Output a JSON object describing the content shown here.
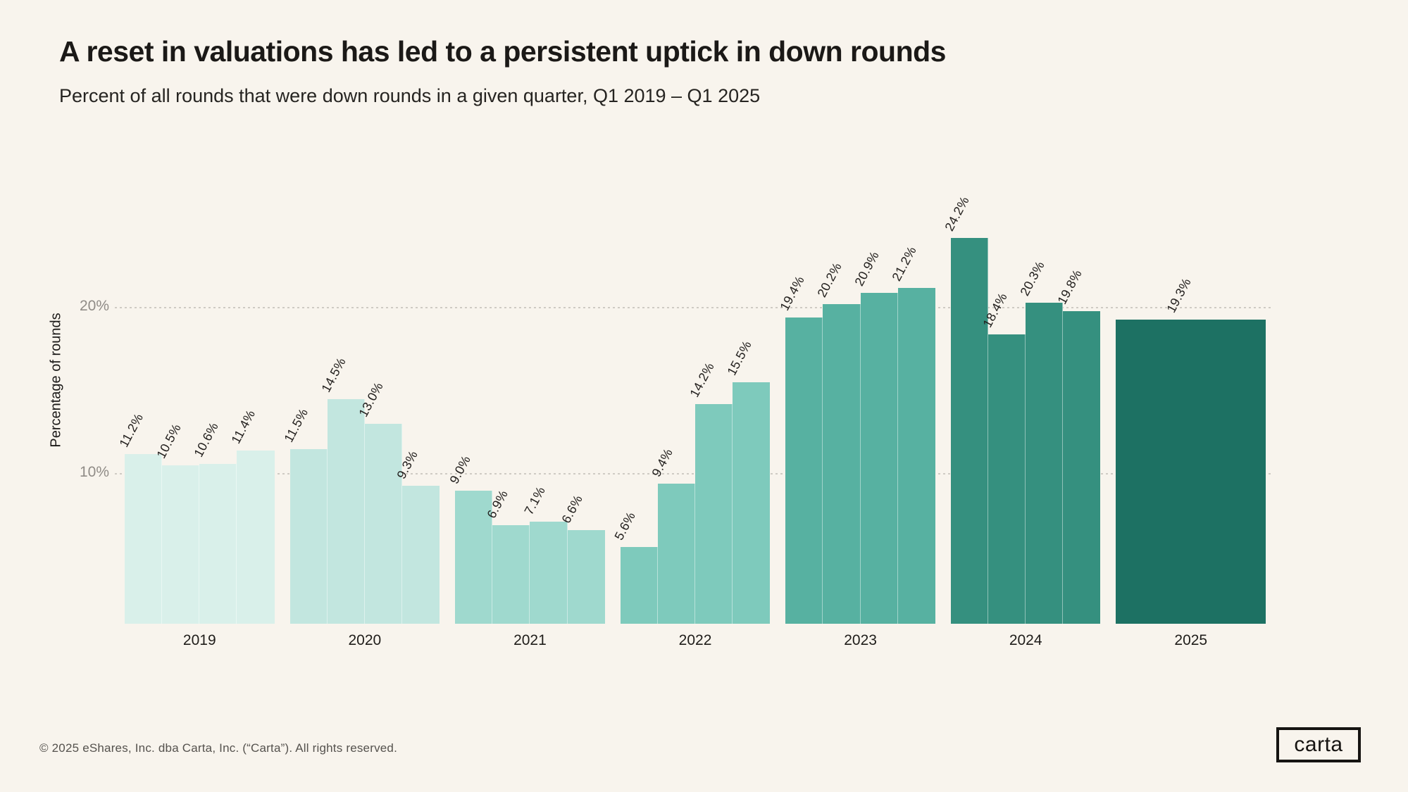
{
  "page": {
    "background": "#f8f4ed",
    "title": "A reset in valuations has led to a persistent uptick in down rounds",
    "subtitle": "Percent of all rounds that were down rounds in a given quarter, Q1 2019 – Q1 2025",
    "footer": "© 2025 eShares, Inc. dba Carta, Inc. (“Carta”). All rights reserved.",
    "logo_text": "carta"
  },
  "chart_data": {
    "type": "bar",
    "title": "A reset in valuations has led to a persistent uptick in down rounds",
    "subtitle": "Percent of all rounds that were down rounds in a given quarter, Q1 2019 – Q1 2025",
    "xlabel": "",
    "ylabel": "Percentage of rounds",
    "unit": "%",
    "ylim": [
      0,
      26
    ],
    "grid": "horizontal-dotted",
    "legend": "none",
    "yticks": [
      {
        "value": 10,
        "label": "10%"
      },
      {
        "value": 20,
        "label": "20%"
      }
    ],
    "categories": [
      "2019",
      "2020",
      "2021",
      "2022",
      "2023",
      "2024",
      "2025"
    ],
    "quarters_per_group": [
      4,
      4,
      4,
      4,
      4,
      4,
      1
    ],
    "groups": [
      {
        "year": "2019",
        "color": "#d9f0ea",
        "values": [
          11.2,
          10.5,
          10.6,
          11.4
        ]
      },
      {
        "year": "2020",
        "color": "#c2e6df",
        "values": [
          11.5,
          14.5,
          13.0,
          9.3
        ]
      },
      {
        "year": "2021",
        "color": "#9fd9ce",
        "values": [
          9.0,
          6.9,
          7.1,
          6.6
        ]
      },
      {
        "year": "2022",
        "color": "#7ecabc",
        "values": [
          5.6,
          9.4,
          14.2,
          15.5
        ]
      },
      {
        "year": "2023",
        "color": "#57b1a1",
        "values": [
          19.4,
          20.2,
          20.9,
          21.2
        ]
      },
      {
        "year": "2024",
        "color": "#35907f",
        "values": [
          24.2,
          18.4,
          20.3,
          19.8
        ]
      },
      {
        "year": "2025",
        "color": "#1d7163",
        "values": [
          19.3
        ]
      }
    ]
  }
}
